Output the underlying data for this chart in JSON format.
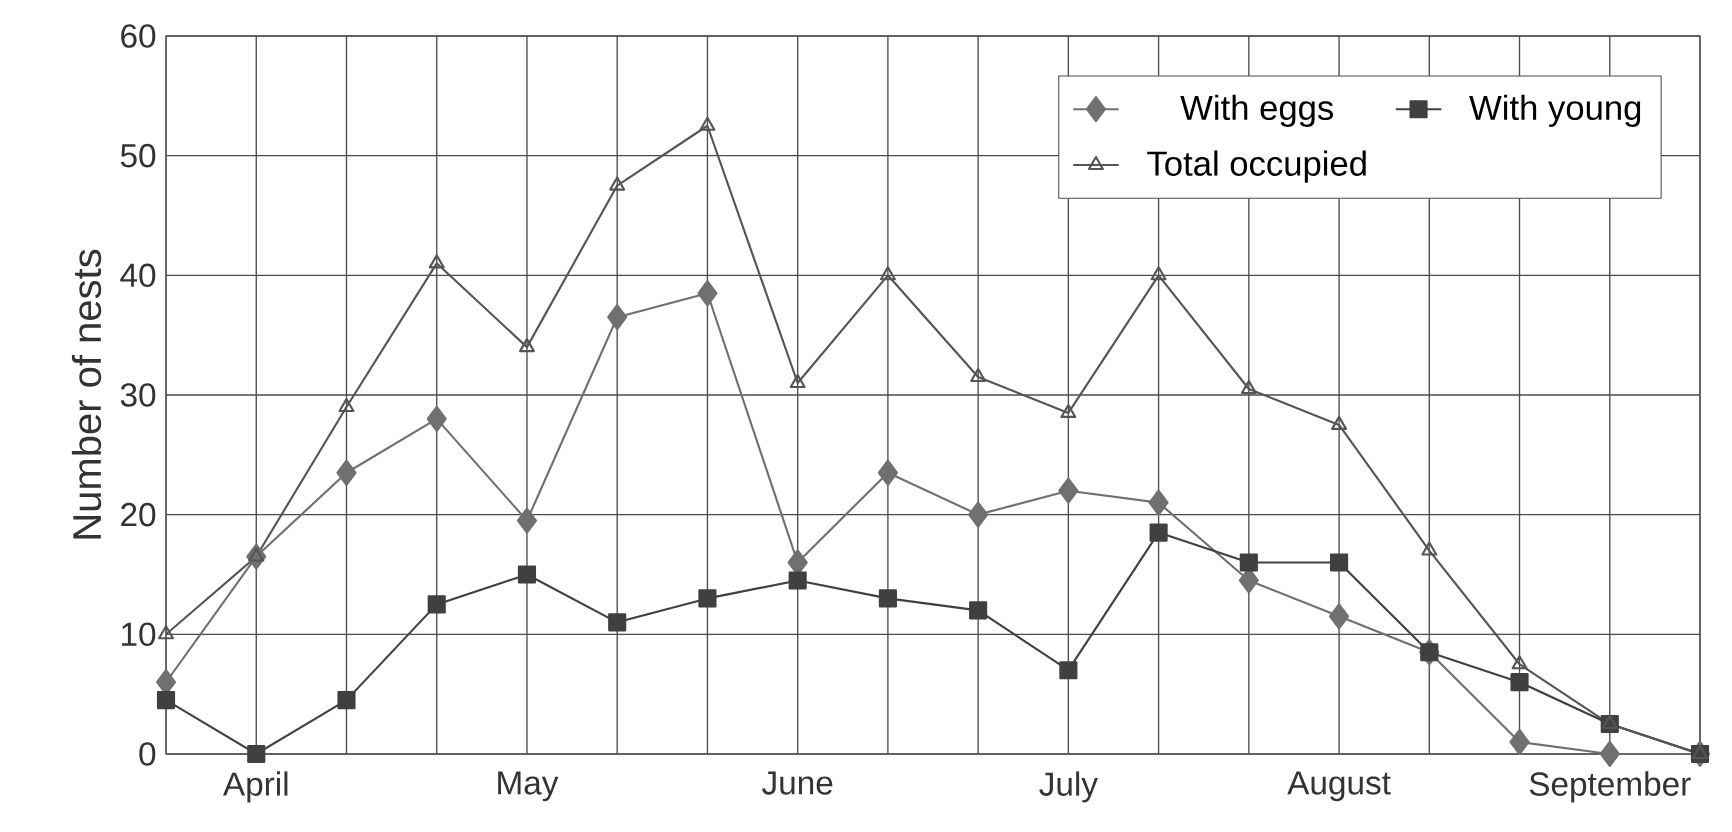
{
  "chart_data": {
    "type": "line",
    "ylabel": "Number of nests",
    "categories": [
      null,
      "April",
      null,
      null,
      "May",
      null,
      null,
      "June",
      null,
      null,
      "July",
      null,
      null,
      "August",
      null,
      null,
      "September",
      null
    ],
    "series": [
      {
        "name": "With eggs",
        "color": "#707070",
        "marker": "diamond",
        "values": [
          6,
          16.5,
          23.5,
          28,
          19.5,
          36.5,
          38.5,
          16,
          23.5,
          20,
          22,
          21,
          14.5,
          11.5,
          8.5,
          1,
          0,
          0
        ]
      },
      {
        "name": "With young",
        "color": "#404040",
        "marker": "square",
        "values": [
          4.5,
          0,
          4.5,
          12.5,
          15,
          11,
          13,
          14.5,
          13,
          12,
          7,
          18.5,
          16,
          16,
          8.5,
          6,
          2.5,
          0
        ]
      },
      {
        "name": "Total occupied",
        "color": "#555555",
        "marker": "triangle",
        "values": [
          10,
          16.5,
          29,
          41,
          34,
          47.5,
          52.5,
          31,
          40,
          31.5,
          28.5,
          40,
          30.5,
          27.5,
          17,
          7.5,
          2.5,
          0
        ]
      }
    ],
    "ylim": [
      0,
      60
    ],
    "yticks": [
      0,
      10,
      20,
      30,
      40,
      50,
      60
    ],
    "grid": true,
    "legend": "top right",
    "line_style": "solid"
  }
}
